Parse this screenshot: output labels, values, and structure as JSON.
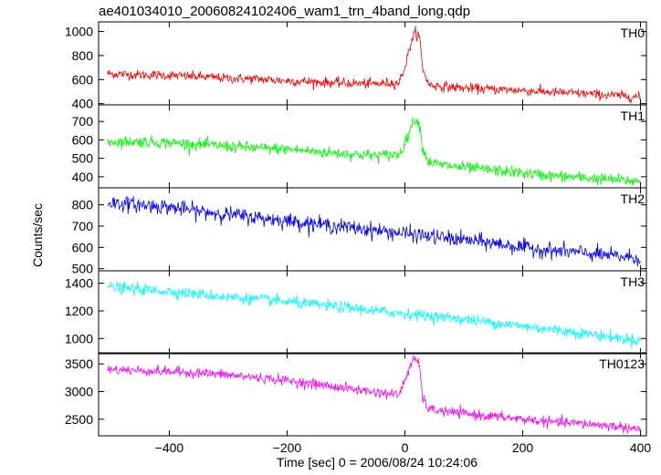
{
  "chart_data": {
    "type": "line",
    "title": "ae401034010_20060824102406_wam1_trn_4band_long.qdp",
    "xlabel": "Time [sec] 0 = 2006/08/24 10:24:06",
    "ylabel": "Counts/sec",
    "xlim": [
      -520,
      410
    ],
    "xticks": [
      -400,
      -200,
      0,
      200,
      400
    ],
    "xtick_labels": [
      "−400",
      "−200",
      "0",
      "200",
      "400"
    ],
    "grid": false,
    "panels": [
      {
        "name": "TH0",
        "color": "#ff0000",
        "ylim": [
          390,
          1080
        ],
        "yticks": [
          400,
          600,
          800,
          1000
        ],
        "ytick_labels": [
          "400",
          "600",
          "800",
          "1000"
        ],
        "series": {
          "x": [
            -505,
            -450,
            -400,
            -350,
            -300,
            -250,
            -200,
            -150,
            -100,
            -50,
            -10,
            0,
            10,
            18,
            25,
            30,
            40,
            60,
            100,
            150,
            200,
            250,
            300,
            350,
            400
          ],
          "values": [
            650,
            640,
            635,
            625,
            610,
            605,
            590,
            580,
            570,
            565,
            575,
            700,
            900,
            1000,
            950,
            700,
            560,
            545,
            530,
            520,
            510,
            495,
            485,
            470,
            455
          ],
          "noise": 45
        }
      },
      {
        "name": "TH1",
        "color": "#00ff00",
        "ylim": [
          340,
          790
        ],
        "yticks": [
          400,
          500,
          600,
          700
        ],
        "ytick_labels": [
          "400",
          "500",
          "600",
          "700"
        ],
        "series": {
          "x": [
            -505,
            -450,
            -400,
            -350,
            -300,
            -250,
            -200,
            -150,
            -100,
            -50,
            -10,
            0,
            10,
            18,
            25,
            30,
            40,
            60,
            100,
            150,
            200,
            250,
            300,
            350,
            400
          ],
          "values": [
            590,
            590,
            585,
            575,
            565,
            555,
            550,
            535,
            525,
            515,
            520,
            580,
            670,
            720,
            680,
            560,
            480,
            465,
            450,
            435,
            420,
            405,
            395,
            385,
            375
          ],
          "noise": 35
        }
      },
      {
        "name": "TH2",
        "color": "#0000ff",
        "ylim": [
          490,
          880
        ],
        "yticks": [
          500,
          600,
          700,
          800
        ],
        "ytick_labels": [
          "500",
          "600",
          "700",
          "800"
        ],
        "series": {
          "x": [
            -505,
            -450,
            -400,
            -350,
            -300,
            -250,
            -200,
            -150,
            -100,
            -50,
            0,
            50,
            100,
            150,
            200,
            250,
            300,
            350,
            400
          ],
          "values": [
            810,
            800,
            790,
            770,
            755,
            740,
            725,
            710,
            695,
            680,
            665,
            650,
            635,
            620,
            600,
            585,
            575,
            560,
            550
          ],
          "noise": 40
        }
      },
      {
        "name": "TH3",
        "color": "#00ffff",
        "ylim": [
          890,
          1490
        ],
        "yticks": [
          1000,
          1200,
          1400
        ],
        "ytick_labels": [
          "1000",
          "1200",
          "1400"
        ],
        "series": {
          "x": [
            -505,
            -450,
            -400,
            -350,
            -300,
            -250,
            -200,
            -150,
            -100,
            -50,
            0,
            50,
            100,
            150,
            200,
            250,
            300,
            350,
            400
          ],
          "values": [
            1370,
            1355,
            1340,
            1320,
            1300,
            1285,
            1265,
            1245,
            1225,
            1200,
            1180,
            1160,
            1140,
            1115,
            1090,
            1065,
            1040,
            1010,
            985
          ],
          "noise": 45
        }
      },
      {
        "name": "TH0123",
        "color": "#ff00ff",
        "ylim": [
          2200,
          3700
        ],
        "yticks": [
          2500,
          3000,
          3500
        ],
        "ytick_labels": [
          "2500",
          "3000",
          "3500"
        ],
        "series": {
          "x": [
            -505,
            -450,
            -400,
            -350,
            -300,
            -250,
            -200,
            -150,
            -100,
            -50,
            -10,
            0,
            10,
            18,
            25,
            30,
            40,
            60,
            100,
            150,
            200,
            250,
            300,
            350,
            400
          ],
          "values": [
            3400,
            3380,
            3360,
            3340,
            3300,
            3250,
            3200,
            3130,
            3060,
            2990,
            2940,
            3200,
            3500,
            3600,
            3450,
            2900,
            2680,
            2650,
            2600,
            2550,
            2500,
            2450,
            2420,
            2380,
            2320
          ],
          "noise": 100
        }
      }
    ]
  }
}
